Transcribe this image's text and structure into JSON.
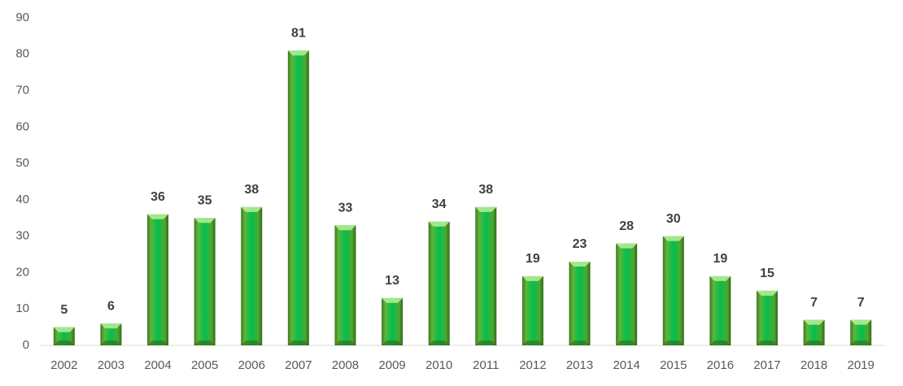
{
  "chart_data": {
    "type": "bar",
    "categories": [
      "2002",
      "2003",
      "2004",
      "2005",
      "2006",
      "2007",
      "2008",
      "2009",
      "2010",
      "2011",
      "2012",
      "2013",
      "2014",
      "2015",
      "2016",
      "2017",
      "2018",
      "2019"
    ],
    "values": [
      5,
      6,
      36,
      35,
      38,
      81,
      33,
      13,
      34,
      38,
      19,
      23,
      28,
      30,
      19,
      15,
      7,
      7
    ],
    "color": "#00b050",
    "ylim": [
      0,
      90
    ],
    "yticks": [
      0,
      10,
      20,
      30,
      40,
      50,
      60,
      70,
      80,
      90
    ],
    "grid": false
  }
}
